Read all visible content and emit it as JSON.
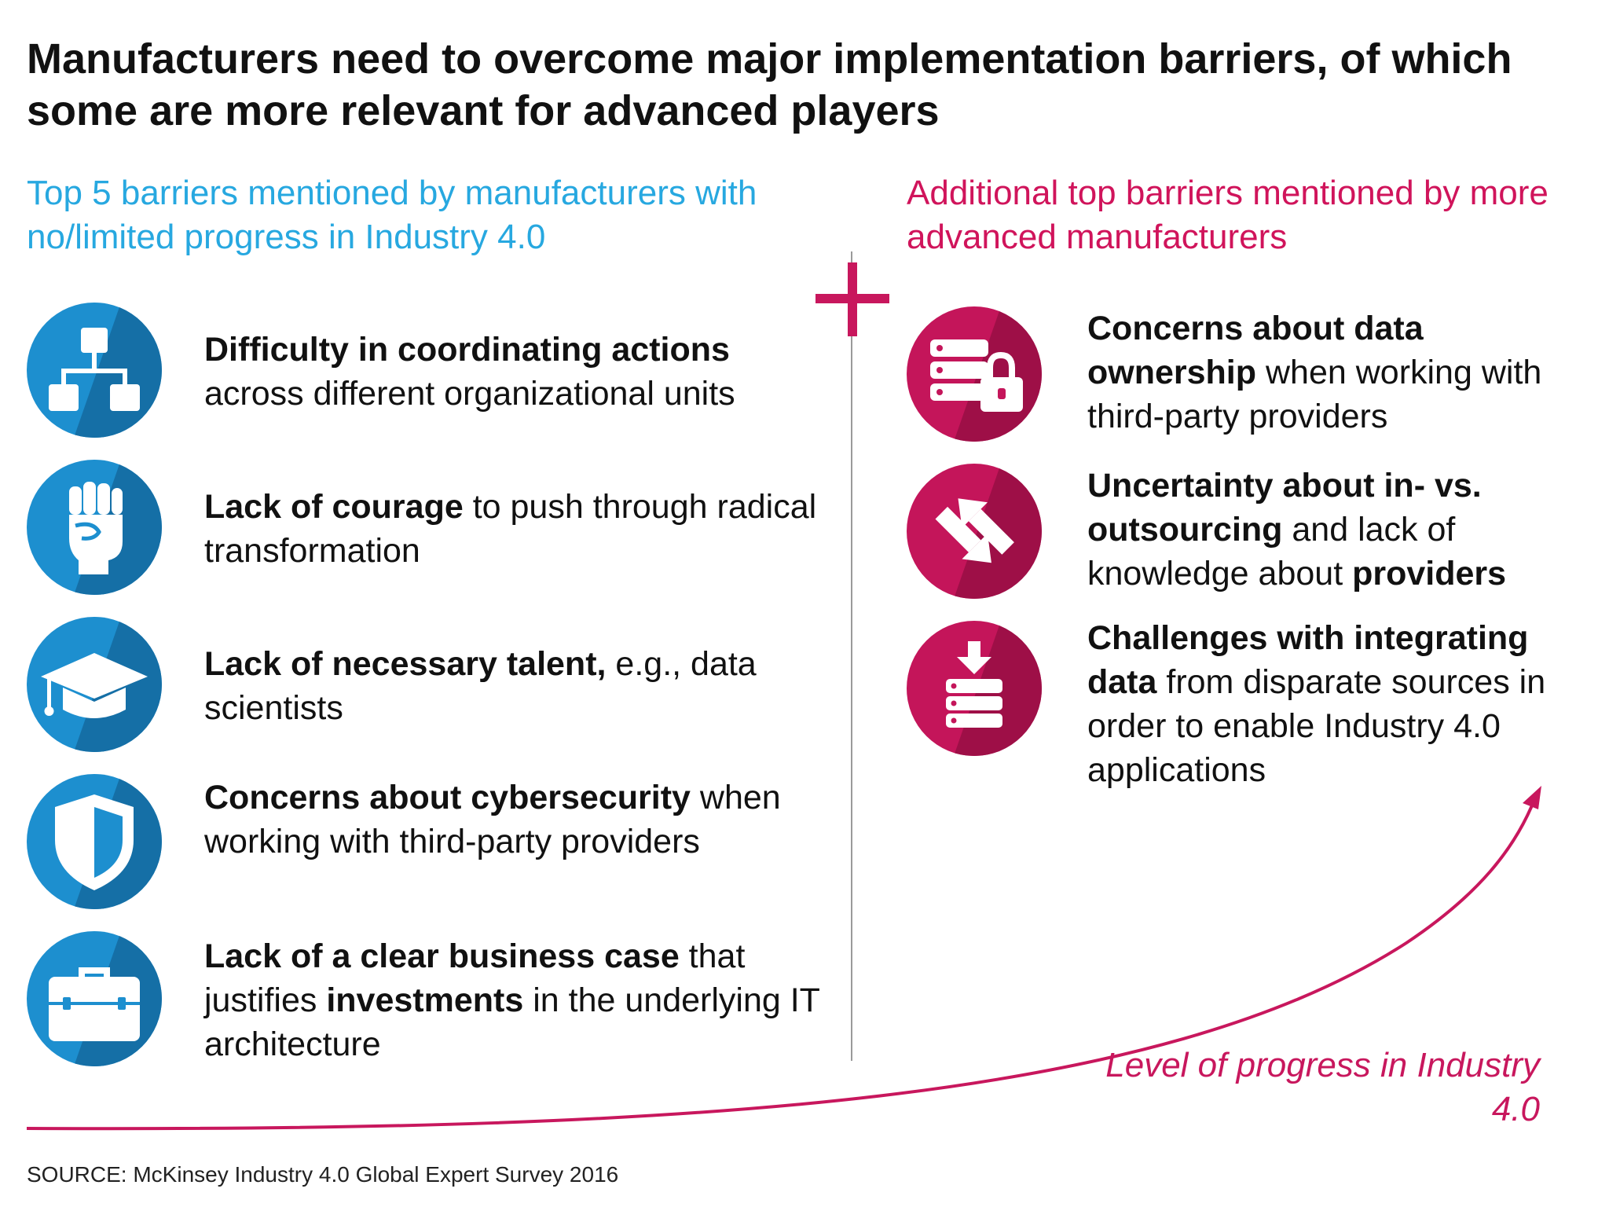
{
  "title": "Manufacturers need to overcome major implementation barriers, of which some are more relevant for advanced players",
  "left": {
    "heading": "Top 5 barriers mentioned by manufacturers with no/limited progress in Industry 4.0",
    "items": [
      {
        "icon": "org-chart-icon",
        "bold": "Difficulty in coordinating actions",
        "rest": " across different organizational units"
      },
      {
        "icon": "raised-fist-icon",
        "bold": "Lack of courage",
        "rest": " to push through radical transformation"
      },
      {
        "icon": "graduation-cap-icon",
        "bold": "Lack of necessary talent,",
        "rest": " e.g., data scientists"
      },
      {
        "icon": "shield-icon",
        "bold": "Concerns about cybersecurity",
        "rest": " when working with third-party providers"
      },
      {
        "icon": "briefcase-icon",
        "bold_a": "Lack of a clear business case",
        "mid": " that justifies ",
        "bold_b": "investments",
        "rest": " in the underlying IT architecture"
      }
    ]
  },
  "right": {
    "heading": "Additional top barriers mentioned by more advanced manufacturers",
    "items": [
      {
        "icon": "server-lock-icon",
        "bold": "Concerns about data ownership",
        "rest": " when working with third-party providers"
      },
      {
        "icon": "swap-arrows-icon",
        "bold": "Uncertainty about in- vs. outsourcing",
        "mid": " and lack of knowledge about ",
        "bold_b": "providers"
      },
      {
        "icon": "data-download-icon",
        "bold": "Challenges with integrating data",
        "rest": " from disparate sources in order to enable Industry 4.0 applications"
      }
    ]
  },
  "progress_label": "Level of progress in Industry 4.0",
  "source": "SOURCE: McKinsey Industry 4.0 Global Expert Survey 2016",
  "colors": {
    "blue": "#1d8fcf",
    "blue_text": "#27a8e0",
    "pink": "#c4155a"
  }
}
